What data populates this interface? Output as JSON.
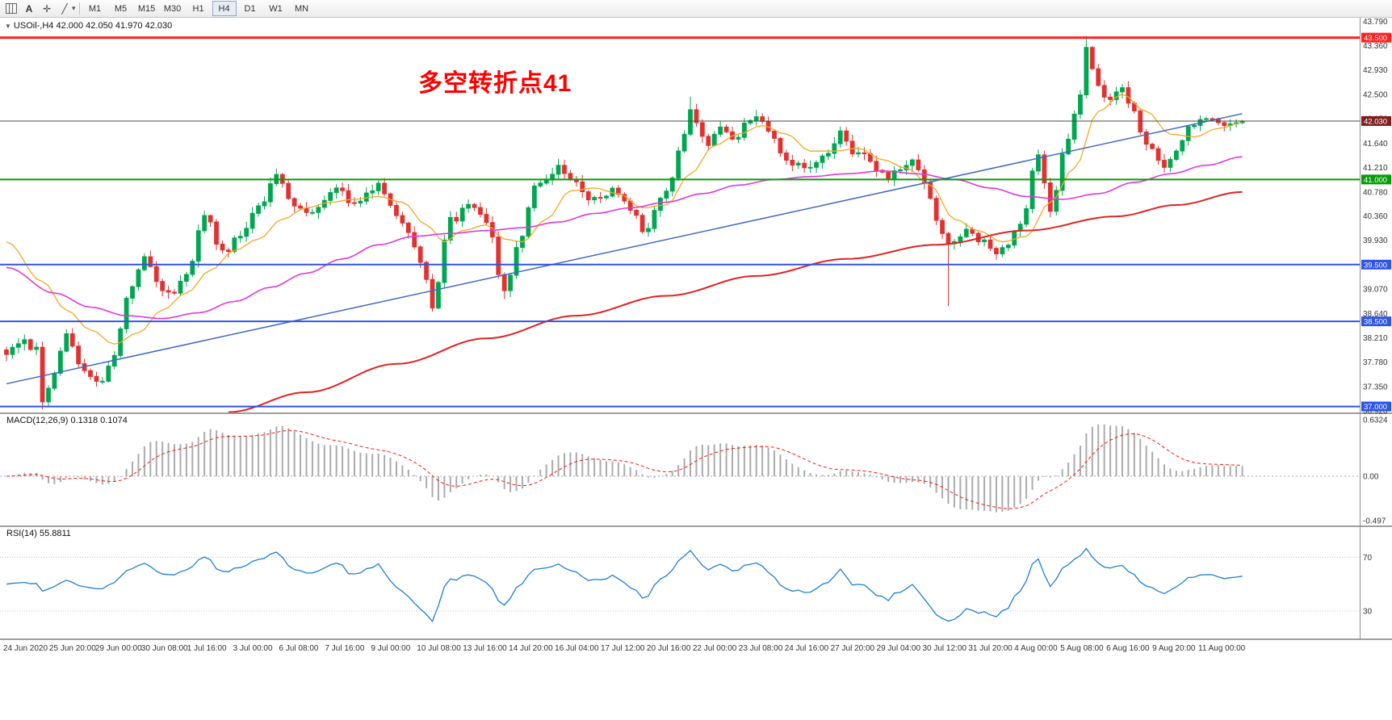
{
  "toolbar": {
    "text_tool_label": "A",
    "timeframes": [
      "M1",
      "M5",
      "M15",
      "M30",
      "H1",
      "H4",
      "D1",
      "W1",
      "MN"
    ],
    "active_timeframe": "H4"
  },
  "header": {
    "quote_line": "USOil-,H4 42.000 42.050 41.970 42.030"
  },
  "annotation": {
    "text": "多空转折点41",
    "color": "#FF0000"
  },
  "axis": {
    "y_ticks": [
      "43.790",
      "43.360",
      "42.930",
      "42.500",
      "42.070",
      "41.640",
      "41.210",
      "40.780",
      "40.360",
      "39.930",
      "39.500",
      "39.070",
      "38.640",
      "38.210",
      "37.780",
      "37.350",
      "36.920"
    ],
    "x_labels": [
      "24 Jun 2020",
      "25 Jun 20:00",
      "29 Jun 00:00",
      "30 Jun 08:00",
      "1 Jul 16:00",
      "3 Jul 00:00",
      "6 Jul 08:00",
      "7 Jul 16:00",
      "9 Jul 00:00",
      "10 Jul 08:00",
      "13 Jul 16:00",
      "14 Jul 20:00",
      "16 Jul 04:00",
      "17 Jul 12:00",
      "20 Jul 16:00",
      "22 Jul 00:00",
      "23 Jul 08:00",
      "24 Jul 16:00",
      "27 Jul 20:00",
      "29 Jul 04:00",
      "30 Jul 12:00",
      "31 Jul 20:00",
      "4 Aug 00:00",
      "5 Aug 08:00",
      "6 Aug 16:00",
      "9 Aug 20:00",
      "11 Aug 00:00"
    ]
  },
  "chart_data": {
    "type": "candlestick",
    "symbol": "USOil-",
    "timeframe": "H4",
    "ohlc_quote": {
      "open": "42.000",
      "high": "42.050",
      "low": "41.970",
      "close": "42.030"
    },
    "price_range": [
      36.88,
      43.85
    ],
    "candle_count": 207,
    "up_color": "#00A651",
    "down_color": "#E03232",
    "price_anchors": [
      [
        0,
        37.95
      ],
      [
        3,
        38.15
      ],
      [
        5,
        38.0
      ],
      [
        6,
        37.15
      ],
      [
        8,
        37.6
      ],
      [
        10,
        38.3
      ],
      [
        13,
        37.6
      ],
      [
        16,
        37.45
      ],
      [
        18,
        37.9
      ],
      [
        20,
        38.9
      ],
      [
        23,
        39.6
      ],
      [
        25,
        39.2
      ],
      [
        27,
        38.95
      ],
      [
        30,
        39.3
      ],
      [
        33,
        40.4
      ],
      [
        36,
        39.7
      ],
      [
        39,
        40.0
      ],
      [
        42,
        40.5
      ],
      [
        45,
        41.05
      ],
      [
        48,
        40.6
      ],
      [
        50,
        40.35
      ],
      [
        53,
        40.6
      ],
      [
        55,
        40.85
      ],
      [
        58,
        40.55
      ],
      [
        62,
        40.9
      ],
      [
        66,
        40.25
      ],
      [
        69,
        39.6
      ],
      [
        71,
        38.8
      ],
      [
        74,
        40.3
      ],
      [
        78,
        40.55
      ],
      [
        80,
        40.2
      ],
      [
        83,
        39.1
      ],
      [
        86,
        40.0
      ],
      [
        88,
        40.9
      ],
      [
        92,
        41.2
      ],
      [
        95,
        40.9
      ],
      [
        97,
        40.6
      ],
      [
        101,
        40.8
      ],
      [
        104,
        40.5
      ],
      [
        106,
        40.1
      ],
      [
        110,
        40.8
      ],
      [
        113,
        41.8
      ],
      [
        114,
        42.2
      ],
      [
        117,
        41.6
      ],
      [
        119,
        41.9
      ],
      [
        121,
        41.75
      ],
      [
        125,
        42.1
      ],
      [
        128,
        41.7
      ],
      [
        130,
        41.3
      ],
      [
        134,
        41.15
      ],
      [
        137,
        41.5
      ],
      [
        139,
        41.8
      ],
      [
        141,
        41.5
      ],
      [
        143,
        41.4
      ],
      [
        147,
        41.05
      ],
      [
        151,
        41.3
      ],
      [
        153,
        40.9
      ],
      [
        155,
        40.3
      ],
      [
        157,
        39.9
      ],
      [
        160,
        40.1
      ],
      [
        163,
        39.9
      ],
      [
        165,
        39.7
      ],
      [
        167,
        39.9
      ],
      [
        169,
        40.2
      ],
      [
        172,
        41.5
      ],
      [
        174,
        40.5
      ],
      [
        177,
        41.7
      ],
      [
        179,
        42.5
      ],
      [
        180,
        43.35
      ],
      [
        181,
        42.9
      ],
      [
        183,
        42.4
      ],
      [
        186,
        42.6
      ],
      [
        188,
        42.2
      ],
      [
        190,
        41.6
      ],
      [
        193,
        41.25
      ],
      [
        195,
        41.5
      ],
      [
        197,
        41.9
      ],
      [
        199,
        42.0
      ],
      [
        201,
        42.05
      ],
      [
        203,
        41.95
      ],
      [
        205,
        42.0
      ],
      [
        206,
        42.03
      ]
    ],
    "forced_extremes": [
      {
        "i": 6,
        "low": 36.95
      },
      {
        "i": 71,
        "low": 38.67
      },
      {
        "i": 83,
        "low": 38.89
      },
      {
        "i": 114,
        "high": 42.46
      },
      {
        "i": 157,
        "low": 38.77
      },
      {
        "i": 180,
        "high": 43.53
      }
    ],
    "last_candle": {
      "open": 42.0,
      "high": 42.05,
      "low": 41.97,
      "close": 42.03
    },
    "h_lines": [
      {
        "value": 43.5,
        "color": "#FF2121",
        "width": 3,
        "label": "43.500",
        "label_bg": "#FF2121"
      },
      {
        "value": 41.0,
        "color": "#089B08",
        "width": 2,
        "label": "41.000",
        "label_bg": "#089B08"
      },
      {
        "value": 39.5,
        "color": "#2E54E8",
        "width": 2,
        "label": "39.500",
        "label_bg": "#2E54E8"
      },
      {
        "value": 38.5,
        "color": "#2E54E8",
        "width": 2,
        "label": "38.500",
        "label_bg": "#2E54E8"
      },
      {
        "value": 37.0,
        "color": "#2E54E8",
        "width": 2,
        "label": "37.000",
        "label_bg": "#2E54E8"
      },
      {
        "value": 42.03,
        "color": "#4A4A4A",
        "width": 1,
        "label": "42.030",
        "label_bg": "#7E1E1E"
      }
    ],
    "trendline": {
      "start": [
        0,
        37.4
      ],
      "end": [
        206,
        42.16
      ],
      "color": "#4169C8"
    },
    "moving_averages": [
      {
        "name": "ma-fast",
        "color": "#F5A623",
        "width": 1.3,
        "anchors": [
          [
            0,
            39.9
          ],
          [
            6,
            39.2
          ],
          [
            10,
            38.7
          ],
          [
            14,
            38.35
          ],
          [
            18,
            38.1
          ],
          [
            22,
            38.3
          ],
          [
            26,
            38.7
          ],
          [
            30,
            39.0
          ],
          [
            34,
            39.4
          ],
          [
            38,
            39.75
          ],
          [
            42,
            39.95
          ],
          [
            46,
            40.3
          ],
          [
            50,
            40.5
          ],
          [
            54,
            40.6
          ],
          [
            58,
            40.65
          ],
          [
            62,
            40.7
          ],
          [
            66,
            40.6
          ],
          [
            70,
            40.2
          ],
          [
            73,
            39.9
          ],
          [
            76,
            40.1
          ],
          [
            80,
            40.2
          ],
          [
            83,
            39.95
          ],
          [
            86,
            39.9
          ],
          [
            90,
            40.3
          ],
          [
            94,
            40.8
          ],
          [
            98,
            40.85
          ],
          [
            102,
            40.75
          ],
          [
            106,
            40.5
          ],
          [
            110,
            40.55
          ],
          [
            114,
            41.1
          ],
          [
            118,
            41.6
          ],
          [
            122,
            41.8
          ],
          [
            126,
            41.95
          ],
          [
            130,
            41.8
          ],
          [
            134,
            41.5
          ],
          [
            138,
            41.5
          ],
          [
            142,
            41.55
          ],
          [
            146,
            41.35
          ],
          [
            150,
            41.2
          ],
          [
            154,
            40.9
          ],
          [
            158,
            40.3
          ],
          [
            162,
            40.1
          ],
          [
            166,
            39.9
          ],
          [
            170,
            40.0
          ],
          [
            174,
            40.6
          ],
          [
            178,
            41.2
          ],
          [
            182,
            42.2
          ],
          [
            186,
            42.5
          ],
          [
            190,
            42.2
          ],
          [
            194,
            41.8
          ],
          [
            198,
            41.75
          ],
          [
            202,
            41.9
          ],
          [
            206,
            42.0
          ]
        ]
      },
      {
        "name": "ma-mid",
        "color": "#E038D8",
        "width": 1.6,
        "anchors": [
          [
            0,
            39.45
          ],
          [
            8,
            39.0
          ],
          [
            14,
            38.75
          ],
          [
            20,
            38.6
          ],
          [
            26,
            38.55
          ],
          [
            32,
            38.65
          ],
          [
            38,
            38.85
          ],
          [
            44,
            39.1
          ],
          [
            50,
            39.35
          ],
          [
            56,
            39.6
          ],
          [
            62,
            39.85
          ],
          [
            68,
            40.0
          ],
          [
            74,
            40.05
          ],
          [
            80,
            40.1
          ],
          [
            86,
            40.15
          ],
          [
            92,
            40.25
          ],
          [
            98,
            40.4
          ],
          [
            104,
            40.5
          ],
          [
            110,
            40.6
          ],
          [
            116,
            40.75
          ],
          [
            122,
            40.9
          ],
          [
            128,
            41.0
          ],
          [
            134,
            41.05
          ],
          [
            140,
            41.1
          ],
          [
            146,
            41.15
          ],
          [
            152,
            41.1
          ],
          [
            158,
            41.0
          ],
          [
            164,
            40.85
          ],
          [
            170,
            40.7
          ],
          [
            176,
            40.65
          ],
          [
            182,
            40.75
          ],
          [
            188,
            40.95
          ],
          [
            194,
            41.1
          ],
          [
            200,
            41.25
          ],
          [
            206,
            41.4
          ]
        ]
      },
      {
        "name": "ma-slow",
        "color": "#E32222",
        "width": 2,
        "anchors": [
          [
            37,
            36.9
          ],
          [
            50,
            37.25
          ],
          [
            65,
            37.75
          ],
          [
            80,
            38.2
          ],
          [
            95,
            38.6
          ],
          [
            110,
            38.95
          ],
          [
            125,
            39.3
          ],
          [
            140,
            39.6
          ],
          [
            155,
            39.85
          ],
          [
            170,
            40.1
          ],
          [
            185,
            40.35
          ],
          [
            195,
            40.55
          ],
          [
            206,
            40.78
          ]
        ]
      }
    ]
  },
  "macd": {
    "label": "MACD(12,26,9) 0.1318 0.1074",
    "fast": 12,
    "slow": 26,
    "signal": 9,
    "values": {
      "main": 0.1318,
      "signal": 0.1074
    },
    "scale_ticks": [
      "0.6324",
      "0.00",
      "-0.497"
    ],
    "range": [
      0.705,
      -0.56
    ],
    "bar_color": "#ABABAB",
    "signal_color": "#FF1414"
  },
  "rsi": {
    "label": "RSI(14) 55.8811",
    "period": 14,
    "value": 55.8811,
    "levels": [
      "70",
      "30"
    ],
    "range": [
      93,
      9
    ],
    "line_color": "#1E7FD6",
    "level_color": "#BBBBBB"
  }
}
